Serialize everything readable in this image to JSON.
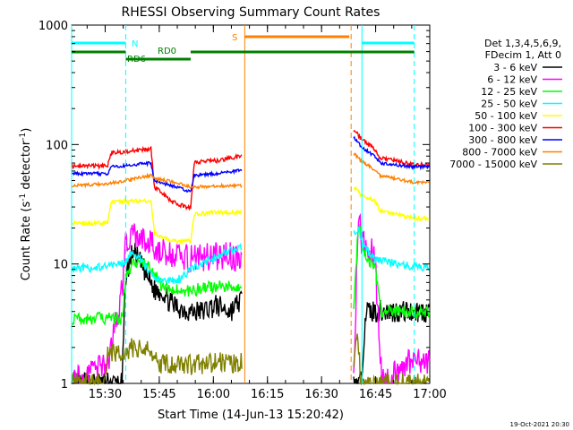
{
  "chart_data": {
    "type": "line",
    "title": "RHESSI Observing Summary Count Rates",
    "xlabel": "Start Time (14-Jun-13 15:20:42)",
    "ylabel": "Count Rate (s⁻¹ detector⁻¹)",
    "ylabel_main": "Count Rate (s",
    "ylabel_sup1": "-1",
    "ylabel_mid": " detector",
    "ylabel_sup2": "-1",
    "ylabel_end": ")",
    "yscale": "log",
    "ylim": [
      1,
      1000
    ],
    "xlim": [
      0,
      99.3
    ],
    "x_tick_labels": [
      "15:30",
      "15:45",
      "16:00",
      "16:15",
      "16:30",
      "16:45",
      "17:00"
    ],
    "x_ticks": [
      9.3,
      24.3,
      39.3,
      54.3,
      69.3,
      84.3,
      99.3
    ],
    "y_tick_labels": [
      "1",
      "10",
      "100",
      "1000"
    ],
    "y_ticks": [
      1,
      10,
      100,
      1000
    ],
    "datestamp": "19-Oct-2021 20:30",
    "legend_header": [
      "Det 1,3,4,5,6,9,",
      "FDecim 1, Att 0"
    ],
    "annotations": {
      "N": "N",
      "S": "S",
      "RD0": "RD0",
      "RD6": "RD6"
    },
    "markers": {
      "night_bars": [
        [
          0,
          15
        ],
        [
          80.5,
          95
        ]
      ],
      "night_lines": [
        0,
        15,
        80.5,
        95
      ],
      "saa_bar": [
        48,
        77
      ],
      "saa_lines": [
        48,
        77.5
      ],
      "rd_bar_1": [
        0,
        15
      ],
      "rd_bar_2": [
        15,
        33
      ],
      "rd_bar_3": [
        33,
        95
      ]
    },
    "gaps": [
      [
        47.3,
        78.2
      ]
    ],
    "series": [
      {
        "name": "3 - 6 keV",
        "color": "#000000",
        "pts": [
          [
            0,
            1.0
          ],
          [
            14,
            1.0
          ],
          [
            15,
            8.0
          ],
          [
            17,
            13.0
          ],
          [
            20,
            9.0
          ],
          [
            23,
            6.0
          ],
          [
            25,
            6.0
          ],
          [
            28,
            4.5
          ],
          [
            33,
            4.0
          ],
          [
            36,
            4.0
          ],
          [
            40,
            4.5
          ],
          [
            44,
            4.0
          ],
          [
            47,
            5.0
          ],
          [
            78.2,
            1.0
          ],
          [
            80.2,
            1.0
          ],
          [
            81.5,
            4.0
          ],
          [
            95,
            4.0
          ],
          [
            99,
            4.0
          ]
        ]
      },
      {
        "name": "6 - 12 keV",
        "color": "#ff00ff",
        "pts": [
          [
            0,
            1.0
          ],
          [
            10,
            1.5
          ],
          [
            14,
            6.0
          ],
          [
            15,
            14.0
          ],
          [
            17,
            17.0
          ],
          [
            21,
            15.0
          ],
          [
            23,
            14.0
          ],
          [
            26,
            12.0
          ],
          [
            30,
            11.5
          ],
          [
            33,
            11.0
          ],
          [
            40,
            11.5
          ],
          [
            47,
            11.5
          ],
          [
            78.2,
            1.0
          ],
          [
            79.5,
            25.0
          ],
          [
            80.5,
            15.0
          ],
          [
            84,
            12.0
          ],
          [
            86,
            1.0
          ],
          [
            93,
            1.5
          ],
          [
            99,
            1.5
          ]
        ]
      },
      {
        "name": "12 - 25 keV",
        "color": "#00ff00",
        "pts": [
          [
            0,
            3.5
          ],
          [
            14,
            3.5
          ],
          [
            15,
            7.5
          ],
          [
            17,
            10.0
          ],
          [
            21,
            9.5
          ],
          [
            23,
            8.5
          ],
          [
            25,
            6.5
          ],
          [
            28,
            6.0
          ],
          [
            33,
            6.0
          ],
          [
            40,
            6.5
          ],
          [
            47,
            6.5
          ],
          [
            78.2,
            3.8
          ],
          [
            79.5,
            22.0
          ],
          [
            81,
            12.0
          ],
          [
            84,
            9.5
          ],
          [
            86,
            4.0
          ],
          [
            95,
            4.0
          ],
          [
            99,
            4.0
          ]
        ]
      },
      {
        "name": "25 - 50 keV",
        "color": "#00ffff",
        "pts": [
          [
            0,
            9.0
          ],
          [
            10,
            9.5
          ],
          [
            15,
            10.5
          ],
          [
            17,
            13.0
          ],
          [
            20,
            10.0
          ],
          [
            22,
            8.0
          ],
          [
            25,
            7.0
          ],
          [
            30,
            7.5
          ],
          [
            33,
            9.0
          ],
          [
            40,
            11.5
          ],
          [
            47,
            14.0
          ],
          [
            78.2,
            17.0
          ],
          [
            79.5,
            20.0
          ],
          [
            81,
            14.0
          ],
          [
            84,
            11.0
          ],
          [
            90,
            10.0
          ],
          [
            95,
            9.5
          ],
          [
            99,
            9.5
          ]
        ]
      },
      {
        "name": "50 - 100 keV",
        "color": "#ffff00",
        "pts": [
          [
            0,
            22.0
          ],
          [
            10,
            22.0
          ],
          [
            11,
            33.0
          ],
          [
            22,
            34.0
          ],
          [
            23,
            18.0
          ],
          [
            28,
            15.5
          ],
          [
            33,
            15.5
          ],
          [
            34,
            26.0
          ],
          [
            40,
            27.0
          ],
          [
            47,
            27.0
          ],
          [
            78.2,
            45.0
          ],
          [
            80.5,
            37.0
          ],
          [
            84,
            34.0
          ],
          [
            85.5,
            28.0
          ],
          [
            95,
            24.0
          ],
          [
            99,
            24.0
          ]
        ]
      },
      {
        "name": "100 - 300 keV",
        "color": "#ff0000",
        "pts": [
          [
            0,
            66.0
          ],
          [
            10,
            66.0
          ],
          [
            11,
            85.0
          ],
          [
            22,
            92.0
          ],
          [
            23,
            44.0
          ],
          [
            28,
            33.0
          ],
          [
            33,
            29.0
          ],
          [
            34,
            71.0
          ],
          [
            40,
            73.0
          ],
          [
            47,
            80.0
          ],
          [
            78.2,
            132.0
          ],
          [
            80.5,
            110.0
          ],
          [
            84,
            92.0
          ],
          [
            85.5,
            78.0
          ],
          [
            95,
            68.0
          ],
          [
            99,
            68.0
          ]
        ]
      },
      {
        "name": "300 - 800 keV",
        "color": "#0000ff",
        "pts": [
          [
            0,
            57.0
          ],
          [
            10,
            57.0
          ],
          [
            11,
            65.0
          ],
          [
            22,
            70.0
          ],
          [
            23,
            50.0
          ],
          [
            28,
            45.0
          ],
          [
            33,
            40.0
          ],
          [
            34,
            55.0
          ],
          [
            40,
            57.0
          ],
          [
            47,
            61.0
          ],
          [
            78.2,
            115.0
          ],
          [
            80.5,
            95.0
          ],
          [
            84,
            80.0
          ],
          [
            85.5,
            70.0
          ],
          [
            95,
            65.0
          ],
          [
            99,
            65.0
          ]
        ]
      },
      {
        "name": "800 - 7000 keV",
        "color": "#ff8000",
        "pts": [
          [
            0,
            45.0
          ],
          [
            10,
            47.0
          ],
          [
            15,
            50.0
          ],
          [
            22,
            55.0
          ],
          [
            23,
            52.0
          ],
          [
            28,
            49.0
          ],
          [
            33,
            44.0
          ],
          [
            34,
            44.0
          ],
          [
            40,
            45.0
          ],
          [
            47,
            45.0
          ],
          [
            78.2,
            85.0
          ],
          [
            80.5,
            72.0
          ],
          [
            84,
            62.0
          ],
          [
            85.5,
            55.0
          ],
          [
            95,
            48.0
          ],
          [
            99,
            48.0
          ]
        ]
      },
      {
        "name": "7000 - 15000 keV",
        "color": "#808000",
        "pts": [
          [
            0,
            1.0
          ],
          [
            9,
            1.0
          ],
          [
            10,
            1.7
          ],
          [
            17,
            2.0
          ],
          [
            22,
            1.9
          ],
          [
            23,
            1.5
          ],
          [
            30,
            1.4
          ],
          [
            40,
            1.5
          ],
          [
            47,
            1.5
          ],
          [
            78.2,
            1.5
          ],
          [
            79.2,
            3.0
          ],
          [
            80.2,
            1.0
          ],
          [
            99,
            1.0
          ]
        ]
      }
    ]
  }
}
